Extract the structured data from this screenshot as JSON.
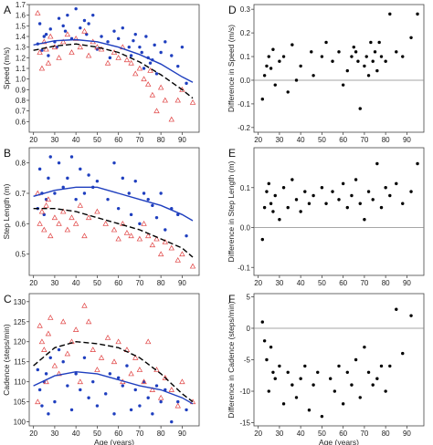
{
  "chart_data": [
    {
      "panel": "A",
      "type": "scatter",
      "ylabel": "Speed (m/s)",
      "xlabel": "",
      "xlim": [
        18,
        98
      ],
      "ylim": [
        0.5,
        1.7
      ],
      "xticks": [
        "20",
        "30",
        "40",
        "50",
        "60",
        "70",
        "80",
        "90"
      ],
      "yticks": [
        "0.6",
        "0.7",
        "0.8",
        "0.9",
        "1.0",
        "1.1",
        "1.2",
        "1.3",
        "1.4",
        "1.5",
        "1.6",
        "1.7"
      ],
      "series": [
        {
          "marker": "circle",
          "color": "#1f3fbf",
          "x": [
            22,
            23,
            24,
            25,
            26,
            27,
            28,
            30,
            31,
            32,
            34,
            35,
            36,
            38,
            40,
            42,
            44,
            45,
            46,
            48,
            50,
            52,
            55,
            56,
            58,
            60,
            62,
            65,
            66,
            67,
            68,
            70,
            71,
            72,
            73,
            74,
            75,
            76,
            77,
            78,
            80,
            82,
            85,
            88,
            90,
            92
          ],
          "y": [
            1.33,
            1.52,
            1.27,
            1.4,
            1.42,
            1.22,
            1.47,
            1.35,
            1.3,
            1.57,
            1.5,
            1.45,
            1.6,
            1.38,
            1.66,
            1.48,
            1.55,
            1.42,
            1.52,
            1.6,
            1.28,
            1.4,
            1.35,
            1.2,
            1.45,
            1.38,
            1.48,
            1.3,
            1.22,
            1.36,
            1.42,
            1.3,
            1.25,
            1.1,
            1.4,
            1.2,
            1.15,
            1.18,
            1.32,
            1.05,
            1.25,
            1.35,
            1.22,
            1.12,
            1.3,
            0.96
          ]
        },
        {
          "marker": "triangle",
          "color": "#e04040",
          "x": [
            22,
            23,
            24,
            25,
            26,
            27,
            28,
            30,
            32,
            34,
            36,
            38,
            40,
            42,
            44,
            46,
            48,
            50,
            52,
            55,
            58,
            60,
            62,
            64,
            66,
            68,
            70,
            72,
            74,
            75,
            76,
            78,
            80,
            82,
            85,
            88,
            90,
            95
          ],
          "y": [
            1.62,
            1.25,
            1.1,
            1.35,
            1.28,
            1.15,
            1.4,
            1.3,
            1.2,
            1.35,
            1.42,
            1.25,
            1.38,
            1.3,
            1.45,
            1.22,
            1.35,
            1.3,
            1.28,
            1.15,
            1.25,
            1.2,
            1.3,
            1.18,
            1.15,
            1.05,
            1.1,
            1.0,
            0.95,
            1.08,
            0.85,
            0.7,
            0.92,
            0.8,
            0.62,
            0.8,
            0.9,
            0.78
          ]
        }
      ],
      "fits": [
        {
          "style": "solid",
          "color": "#1f3fbf",
          "x": [
            20,
            30,
            40,
            50,
            60,
            70,
            80,
            90,
            95
          ],
          "y": [
            1.32,
            1.36,
            1.37,
            1.35,
            1.3,
            1.23,
            1.14,
            1.02,
            0.97
          ]
        },
        {
          "style": "dashed",
          "color": "#000000",
          "x": [
            20,
            30,
            40,
            50,
            60,
            70,
            80,
            90,
            95
          ],
          "y": [
            1.27,
            1.31,
            1.33,
            1.3,
            1.25,
            1.16,
            1.04,
            0.9,
            0.82
          ]
        }
      ]
    },
    {
      "panel": "B",
      "type": "scatter",
      "ylabel": "Step Length (m)",
      "xlabel": "",
      "xlim": [
        18,
        98
      ],
      "ylim": [
        0.43,
        0.85
      ],
      "xticks": [
        "20",
        "30",
        "40",
        "50",
        "60",
        "70",
        "80",
        "90"
      ],
      "yticks": [
        "0.5",
        "0.6",
        "0.7",
        "0.8"
      ],
      "series": [
        {
          "marker": "circle",
          "color": "#1f3fbf",
          "x": [
            22,
            23,
            24,
            25,
            26,
            27,
            28,
            30,
            32,
            34,
            36,
            38,
            40,
            42,
            44,
            46,
            48,
            50,
            55,
            58,
            60,
            62,
            65,
            66,
            68,
            70,
            72,
            74,
            76,
            78,
            80,
            82,
            85,
            88,
            92
          ],
          "y": [
            0.65,
            0.78,
            0.7,
            0.63,
            0.68,
            0.75,
            0.82,
            0.7,
            0.8,
            0.72,
            0.75,
            0.82,
            0.68,
            0.78,
            0.7,
            0.76,
            0.72,
            0.74,
            0.68,
            0.8,
            0.65,
            0.75,
            0.7,
            0.63,
            0.74,
            0.6,
            0.7,
            0.68,
            0.66,
            0.62,
            0.7,
            0.58,
            0.65,
            0.63,
            0.56
          ]
        },
        {
          "marker": "triangle",
          "color": "#e04040",
          "x": [
            22,
            23,
            24,
            25,
            26,
            27,
            28,
            30,
            32,
            34,
            36,
            38,
            40,
            42,
            44,
            46,
            50,
            54,
            58,
            60,
            62,
            64,
            66,
            70,
            72,
            74,
            76,
            78,
            80,
            82,
            85,
            88,
            90,
            95
          ],
          "y": [
            0.7,
            0.6,
            0.64,
            0.58,
            0.66,
            0.68,
            0.56,
            0.62,
            0.6,
            0.64,
            0.58,
            0.62,
            0.6,
            0.66,
            0.56,
            0.62,
            0.64,
            0.6,
            0.58,
            0.55,
            0.6,
            0.57,
            0.56,
            0.55,
            0.6,
            0.56,
            0.53,
            0.55,
            0.5,
            0.54,
            0.52,
            0.48,
            0.5,
            0.46
          ]
        }
      ],
      "fits": [
        {
          "style": "solid",
          "color": "#1f3fbf",
          "x": [
            20,
            30,
            40,
            50,
            60,
            70,
            80,
            90,
            95
          ],
          "y": [
            0.69,
            0.71,
            0.72,
            0.72,
            0.7,
            0.68,
            0.66,
            0.63,
            0.61
          ]
        },
        {
          "style": "dashed",
          "color": "#000000",
          "x": [
            20,
            30,
            40,
            50,
            60,
            70,
            80,
            90,
            95
          ],
          "y": [
            0.65,
            0.65,
            0.64,
            0.62,
            0.6,
            0.58,
            0.55,
            0.52,
            0.49
          ]
        }
      ]
    },
    {
      "panel": "C",
      "type": "scatter",
      "ylabel": "Cadence (steps/min)",
      "xlabel": "Age (years)",
      "xlim": [
        18,
        98
      ],
      "ylim": [
        99,
        132
      ],
      "xticks": [
        "20",
        "30",
        "40",
        "50",
        "60",
        "70",
        "80",
        "90"
      ],
      "yticks": [
        "100",
        "105",
        "110",
        "115",
        "120",
        "125",
        "130"
      ],
      "series": [
        {
          "marker": "circle",
          "color": "#1f3fbf",
          "x": [
            22,
            23,
            24,
            25,
            26,
            27,
            28,
            30,
            32,
            34,
            36,
            38,
            40,
            42,
            44,
            46,
            48,
            50,
            54,
            56,
            58,
            60,
            62,
            64,
            66,
            68,
            70,
            72,
            74,
            76,
            78,
            80,
            82,
            85,
            88,
            92
          ],
          "y": [
            113,
            108,
            104,
            110,
            112,
            102,
            116,
            105,
            118,
            115,
            109,
            103,
            112,
            108,
            116,
            106,
            110,
            104,
            107,
            112,
            102,
            111,
            109,
            114,
            103,
            108,
            104,
            110,
            106,
            102,
            109,
            105,
            108,
            100,
            105,
            103
          ]
        },
        {
          "marker": "triangle",
          "color": "#e04040",
          "x": [
            22,
            23,
            24,
            25,
            26,
            27,
            28,
            30,
            32,
            34,
            36,
            38,
            40,
            42,
            44,
            46,
            48,
            50,
            52,
            55,
            58,
            60,
            62,
            64,
            66,
            68,
            70,
            72,
            74,
            76,
            78,
            80,
            82,
            85,
            88,
            90,
            95
          ],
          "y": [
            105,
            124,
            120,
            118,
            110,
            122,
            126,
            114,
            112,
            125,
            117,
            120,
            123,
            110,
            129,
            125,
            118,
            113,
            116,
            121,
            115,
            120,
            110,
            118,
            112,
            116,
            113,
            110,
            120,
            108,
            113,
            106,
            111,
            108,
            104,
            110,
            105
          ]
        }
      ],
      "fits": [
        {
          "style": "solid",
          "color": "#1f3fbf",
          "x": [
            20,
            30,
            40,
            50,
            60,
            70,
            80,
            90,
            95
          ],
          "y": [
            109,
            111.5,
            112.5,
            112,
            110.5,
            109,
            108,
            106,
            104.5
          ]
        },
        {
          "style": "dashed",
          "color": "#000000",
          "x": [
            20,
            30,
            40,
            50,
            60,
            70,
            80,
            90,
            95
          ],
          "y": [
            114,
            118.5,
            120,
            119.5,
            118.5,
            116,
            112,
            107,
            105
          ]
        }
      ]
    },
    {
      "panel": "D",
      "type": "scatter",
      "ylabel": "Difference in Speed (m/s)",
      "xlabel": "",
      "xlim": [
        18,
        98
      ],
      "ylim": [
        -0.22,
        0.32
      ],
      "xticks": [
        "20",
        "30",
        "40",
        "50",
        "60",
        "70",
        "80",
        "90"
      ],
      "yticks": [
        "-0.2",
        "-0.1",
        "0.0",
        "0.1",
        "0.2",
        "0.3"
      ],
      "reference_line": 0,
      "series": [
        {
          "marker": "circle",
          "color": "#000000",
          "x": [
            22,
            23,
            24,
            25,
            26,
            27,
            28,
            30,
            32,
            34,
            36,
            38,
            40,
            45,
            46,
            50,
            52,
            55,
            58,
            60,
            62,
            64,
            65,
            66,
            67,
            68,
            70,
            71,
            72,
            73,
            74,
            75,
            76,
            77,
            78,
            80,
            82,
            85,
            88,
            92,
            95
          ],
          "y": [
            -0.08,
            0.02,
            0.06,
            0.1,
            0.05,
            0.13,
            -0.02,
            0.08,
            0.1,
            -0.05,
            0.15,
            0.0,
            0.06,
            0.12,
            0.02,
            0.1,
            0.16,
            0.08,
            0.12,
            -0.02,
            0.04,
            0.1,
            0.14,
            0.12,
            0.08,
            -0.12,
            0.06,
            0.1,
            0.02,
            0.16,
            0.08,
            0.12,
            0.04,
            0.16,
            0.1,
            0.08,
            0.28,
            0.12,
            0.1,
            0.18,
            0.28
          ]
        }
      ]
    },
    {
      "panel": "E",
      "type": "scatter",
      "ylabel": "Difference in Step Length (m)",
      "xlabel": "",
      "xlim": [
        18,
        98
      ],
      "ylim": [
        -0.12,
        0.2
      ],
      "xticks": [
        "20",
        "30",
        "40",
        "50",
        "60",
        "70",
        "80",
        "90"
      ],
      "yticks": [
        "-0.1",
        "0.0",
        "0.1"
      ],
      "reference_line": 0,
      "series": [
        {
          "marker": "circle",
          "color": "#000000",
          "x": [
            22,
            23,
            24,
            25,
            26,
            27,
            28,
            30,
            32,
            34,
            36,
            38,
            40,
            42,
            44,
            46,
            50,
            52,
            55,
            58,
            60,
            62,
            64,
            66,
            68,
            70,
            72,
            74,
            76,
            78,
            80,
            82,
            85,
            88,
            92,
            95
          ],
          "y": [
            -0.03,
            0.05,
            0.09,
            0.11,
            0.06,
            0.04,
            0.08,
            0.02,
            0.1,
            0.05,
            0.12,
            0.07,
            0.04,
            0.09,
            0.06,
            0.08,
            0.1,
            0.06,
            0.09,
            0.07,
            0.11,
            0.05,
            0.08,
            0.12,
            0.06,
            0.02,
            0.09,
            0.07,
            0.16,
            0.05,
            0.1,
            0.08,
            0.11,
            0.06,
            0.09,
            0.16
          ]
        }
      ]
    },
    {
      "panel": "F",
      "type": "scatter",
      "ylabel": "Difference in Cadence (steps/min)",
      "xlabel": "Age (years)",
      "xlim": [
        18,
        98
      ],
      "ylim": [
        -15.5,
        5.5
      ],
      "xticks": [
        "20",
        "30",
        "40",
        "50",
        "60",
        "70",
        "80",
        "90"
      ],
      "yticks": [
        "-15",
        "-10",
        "-5",
        "0",
        "5"
      ],
      "reference_line": 0,
      "series": [
        {
          "marker": "circle",
          "color": "#000000",
          "x": [
            22,
            23,
            24,
            25,
            26,
            27,
            28,
            30,
            32,
            34,
            36,
            38,
            40,
            42,
            44,
            46,
            48,
            50,
            54,
            56,
            58,
            60,
            62,
            64,
            66,
            68,
            70,
            72,
            74,
            76,
            78,
            80,
            82,
            85,
            88,
            92
          ],
          "y": [
            1,
            -2,
            -5,
            -10,
            -3,
            -7,
            -8,
            -6,
            -12,
            -7,
            -9,
            -11,
            -8,
            -6,
            -13,
            -9,
            -7,
            -14,
            -8,
            -10,
            -6,
            -12,
            -7,
            -9,
            -5,
            -11,
            -3,
            -7,
            -9,
            -8,
            -6,
            -10,
            -6,
            3,
            -4,
            2
          ]
        }
      ]
    }
  ]
}
